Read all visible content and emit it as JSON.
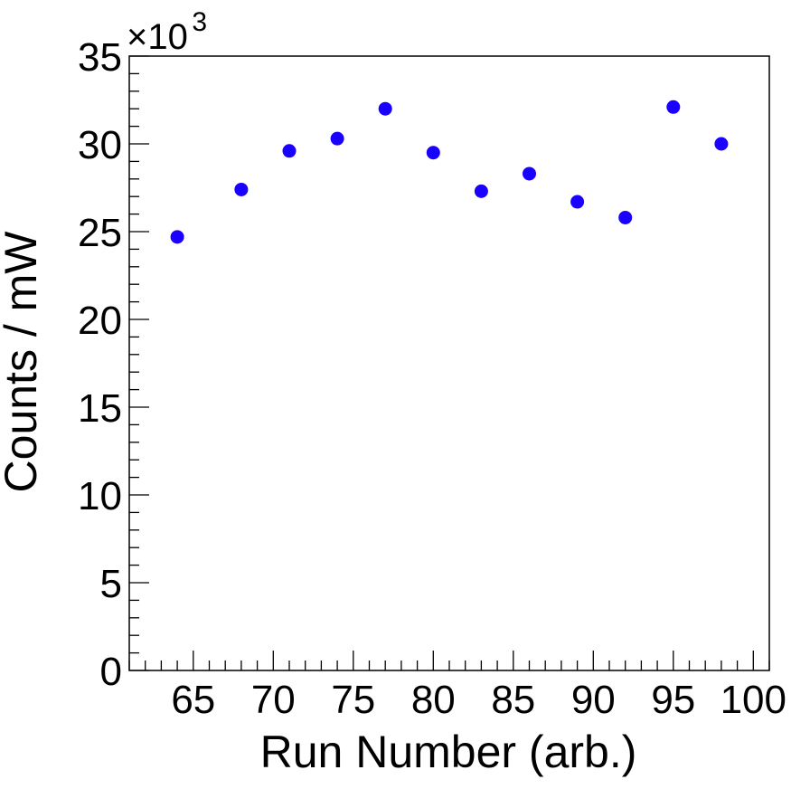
{
  "chart_data": {
    "type": "scatter",
    "xlabel": "Run Number (arb.)",
    "ylabel": "Counts / mW",
    "y_exponent_base": "×10",
    "y_exponent_power": "3",
    "xlim": [
      61,
      101
    ],
    "ylim": [
      0,
      35
    ],
    "x_major_ticks": [
      65,
      70,
      75,
      80,
      85,
      90,
      95,
      100
    ],
    "x_tick_labels": [
      "65",
      "70",
      "75",
      "80",
      "85",
      "90",
      "95",
      "100"
    ],
    "y_major_ticks": [
      0,
      5,
      10,
      15,
      20,
      25,
      30,
      35
    ],
    "y_tick_labels": [
      "0",
      "5",
      "10",
      "15",
      "20",
      "25",
      "30",
      "35"
    ],
    "grid": false,
    "marker_color": "#1a00ff",
    "series": [
      {
        "points": [
          {
            "x": 64,
            "y": 24.7
          },
          {
            "x": 68,
            "y": 27.4
          },
          {
            "x": 71,
            "y": 29.6
          },
          {
            "x": 74,
            "y": 30.3
          },
          {
            "x": 77,
            "y": 32.0
          },
          {
            "x": 80,
            "y": 29.5
          },
          {
            "x": 83,
            "y": 27.3
          },
          {
            "x": 86,
            "y": 28.3
          },
          {
            "x": 89,
            "y": 26.7
          },
          {
            "x": 92,
            "y": 25.8
          },
          {
            "x": 95,
            "y": 32.1
          },
          {
            "x": 98,
            "y": 30.0
          }
        ]
      }
    ]
  }
}
